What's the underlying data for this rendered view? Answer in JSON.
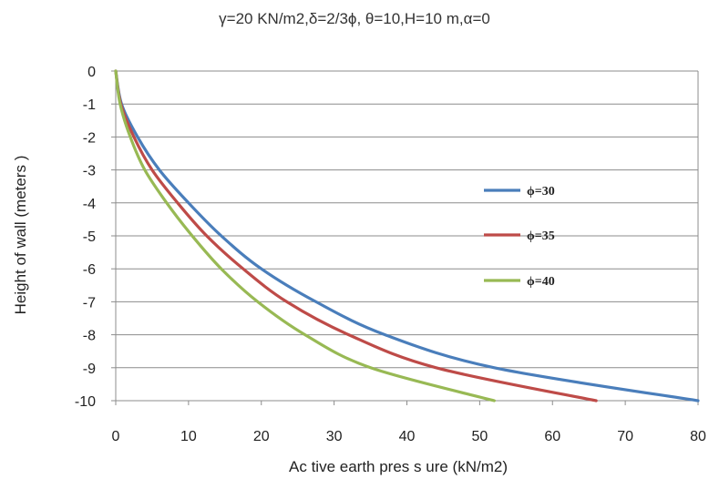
{
  "chart_data": {
    "type": "line",
    "title": "γ=20 KN/m2,δ=2/3ϕ, θ=10,H=10 m,α=0",
    "xlabel": "Ac tive earth pres s ure (kN/m2)",
    "ylabel": "Height of wall (meters )",
    "xlim": [
      0,
      80
    ],
    "ylim": [
      -10,
      0
    ],
    "xticks": [
      "0",
      "10",
      "20",
      "30",
      "40",
      "50",
      "60",
      "70",
      "80"
    ],
    "yticks": [
      "0",
      "-1",
      "-2",
      "-3",
      "-4",
      "-5",
      "-6",
      "-7",
      "-8",
      "-9",
      "-10"
    ],
    "grid": "horizontal",
    "legend_position": "right",
    "series": [
      {
        "name": "ϕ=30",
        "color": "#4a7ebb",
        "points": [
          [
            0,
            0
          ],
          [
            0.8,
            -1
          ],
          [
            3,
            -2
          ],
          [
            6,
            -3
          ],
          [
            10,
            -4
          ],
          [
            14.5,
            -5
          ],
          [
            20,
            -6
          ],
          [
            27.5,
            -7
          ],
          [
            37,
            -8
          ],
          [
            52,
            -9
          ],
          [
            80,
            -10
          ]
        ]
      },
      {
        "name": "ϕ=35",
        "color": "#be4b48",
        "points": [
          [
            0,
            0
          ],
          [
            0.7,
            -1
          ],
          [
            2.5,
            -2
          ],
          [
            5,
            -3
          ],
          [
            8.5,
            -4
          ],
          [
            12.5,
            -5
          ],
          [
            17.5,
            -6
          ],
          [
            23.5,
            -7
          ],
          [
            32,
            -8
          ],
          [
            44,
            -9
          ],
          [
            66,
            -10
          ]
        ]
      },
      {
        "name": "ϕ=40",
        "color": "#98b954",
        "points": [
          [
            0,
            0
          ],
          [
            0.6,
            -1
          ],
          [
            2,
            -2
          ],
          [
            4,
            -3
          ],
          [
            7,
            -4
          ],
          [
            10.5,
            -5
          ],
          [
            14.5,
            -6
          ],
          [
            19.5,
            -7
          ],
          [
            26,
            -8
          ],
          [
            35,
            -9
          ],
          [
            52,
            -10
          ]
        ]
      }
    ]
  }
}
